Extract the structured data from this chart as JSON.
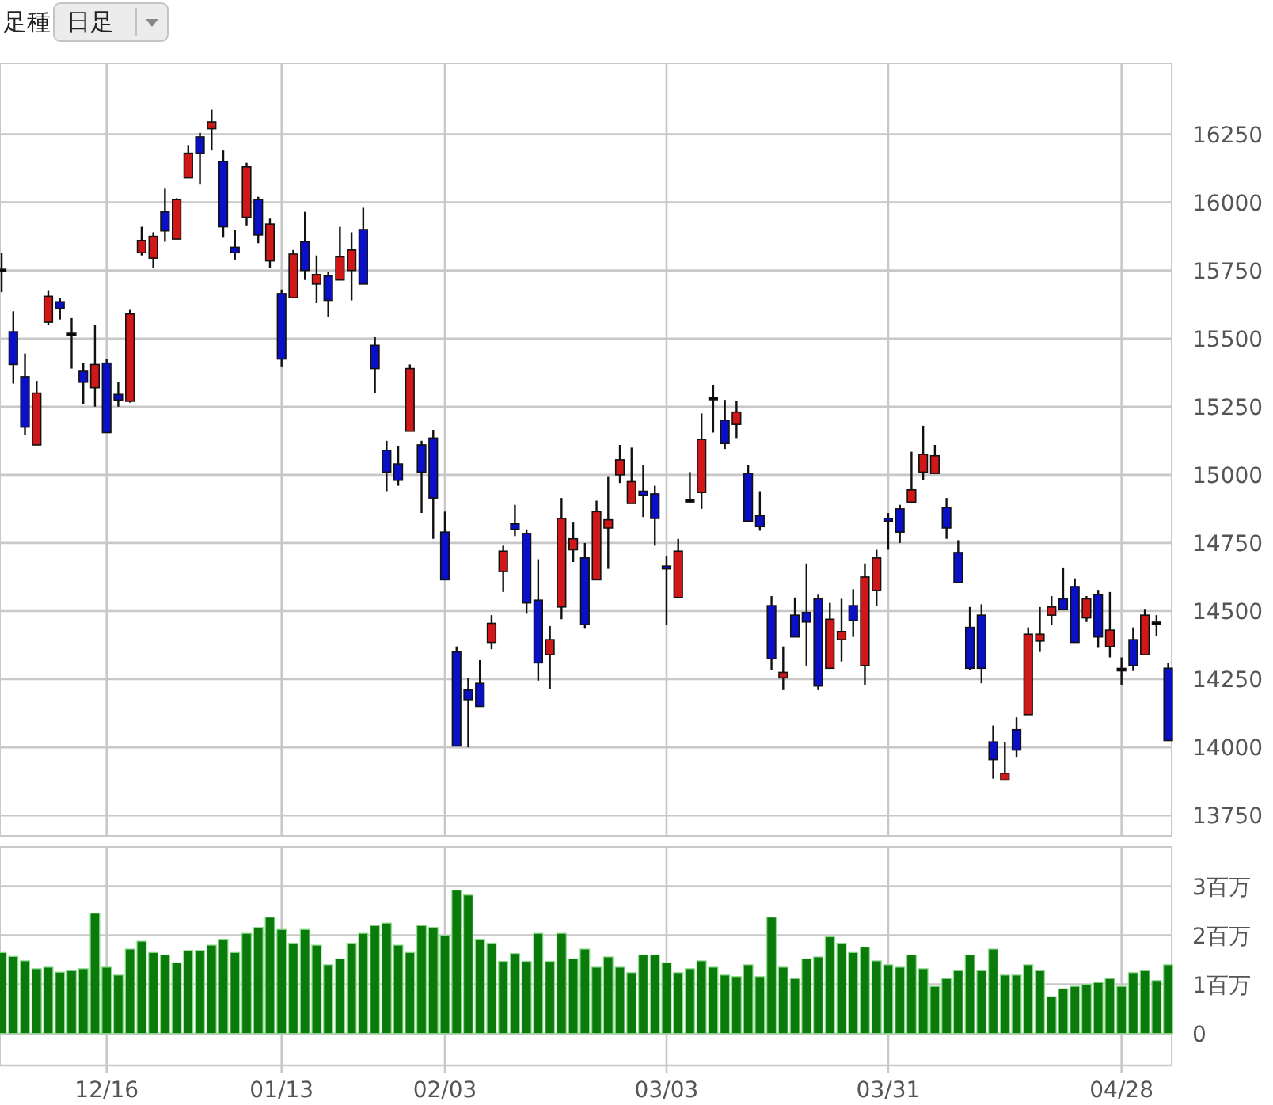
{
  "chart_data": [
    {
      "type": "candlestick",
      "annotations": [
        "足種",
        "日足"
      ],
      "categories": [
        null,
        null,
        null,
        null,
        null,
        null,
        null,
        null,
        null,
        null,
        null,
        null,
        null,
        null,
        null,
        null,
        null,
        null,
        null,
        null,
        null,
        null,
        null,
        null,
        null,
        null,
        null,
        null,
        null,
        null,
        null,
        null,
        null,
        null,
        null,
        null,
        null,
        null,
        null,
        null,
        null,
        null,
        null,
        null,
        null,
        null,
        null,
        null,
        null,
        null,
        null,
        null,
        null,
        null,
        null,
        null,
        null,
        null,
        null,
        null,
        null,
        null,
        null,
        null,
        null,
        null,
        null,
        null,
        null,
        null,
        null,
        null,
        null,
        null,
        null,
        null,
        null,
        null,
        null,
        null,
        null,
        null,
        null,
        null,
        null,
        null,
        null,
        null,
        null,
        null,
        null,
        null,
        null,
        null,
        null,
        null,
        null,
        null,
        null,
        null,
        null
      ],
      "ohlc": [
        [
          15750,
          15815,
          15670,
          15750
        ],
        [
          15525,
          15600,
          15335,
          15405
        ],
        [
          15360,
          15445,
          15145,
          15175
        ],
        [
          15110,
          15345,
          15110,
          15300
        ],
        [
          15560,
          15675,
          15550,
          15655
        ],
        [
          15635,
          15650,
          15570,
          15610
        ],
        [
          15515,
          15575,
          15390,
          15515
        ],
        [
          15380,
          15410,
          15260,
          15340
        ],
        [
          15320,
          15550,
          15250,
          15405
        ],
        [
          15410,
          15425,
          15155,
          15155
        ],
        [
          15295,
          15340,
          15250,
          15275
        ],
        [
          15270,
          15605,
          15265,
          15590
        ],
        [
          15815,
          15910,
          15805,
          15860
        ],
        [
          15795,
          15890,
          15760,
          15875
        ],
        [
          15965,
          16050,
          15855,
          15895
        ],
        [
          15865,
          16015,
          15865,
          16010
        ],
        [
          16090,
          16210,
          16090,
          16180
        ],
        [
          16240,
          16255,
          16065,
          16180
        ],
        [
          16270,
          16340,
          16190,
          16295
        ],
        [
          16150,
          16190,
          15870,
          15910
        ],
        [
          15835,
          15900,
          15790,
          15815
        ],
        [
          15945,
          16145,
          15915,
          16130
        ],
        [
          16010,
          16020,
          15850,
          15880
        ],
        [
          15785,
          15940,
          15760,
          15920
        ],
        [
          15665,
          15680,
          15395,
          15425
        ],
        [
          15650,
          15825,
          15650,
          15810
        ],
        [
          15855,
          15965,
          15715,
          15750
        ],
        [
          15700,
          15805,
          15630,
          15735
        ],
        [
          15730,
          15745,
          15580,
          15640
        ],
        [
          15715,
          15910,
          15715,
          15800
        ],
        [
          15750,
          15890,
          15640,
          15825
        ],
        [
          15900,
          15980,
          15700,
          15700
        ],
        [
          15475,
          15505,
          15300,
          15390
        ],
        [
          15090,
          15125,
          14940,
          15010
        ],
        [
          15040,
          15105,
          14960,
          14980
        ],
        [
          15160,
          15405,
          15160,
          15390
        ],
        [
          15110,
          15125,
          14860,
          15010
        ],
        [
          15135,
          15165,
          14765,
          14915
        ],
        [
          14790,
          14865,
          14615,
          14615
        ],
        [
          14350,
          14370,
          14005,
          14005
        ],
        [
          14210,
          14255,
          14000,
          14175
        ],
        [
          14235,
          14320,
          14150,
          14150
        ],
        [
          14385,
          14485,
          14360,
          14455
        ],
        [
          14645,
          14740,
          14570,
          14720
        ],
        [
          14820,
          14890,
          14775,
          14800
        ],
        [
          14785,
          14800,
          14490,
          14530
        ],
        [
          14540,
          14690,
          14245,
          14310
        ],
        [
          14340,
          14445,
          14215,
          14395
        ],
        [
          14515,
          14915,
          14470,
          14840
        ],
        [
          14725,
          14825,
          14680,
          14765
        ],
        [
          14695,
          14750,
          14435,
          14450
        ],
        [
          14615,
          14905,
          14615,
          14865
        ],
        [
          14805,
          14995,
          14655,
          14835
        ],
        [
          15000,
          15110,
          14970,
          15055
        ],
        [
          14895,
          15100,
          14895,
          14975
        ],
        [
          14940,
          15035,
          14845,
          14925
        ],
        [
          14930,
          14960,
          14740,
          14840
        ],
        [
          14665,
          14700,
          14450,
          14655
        ],
        [
          14550,
          14765,
          14550,
          14720
        ],
        [
          14905,
          15010,
          14895,
          14905
        ],
        [
          14935,
          15225,
          14875,
          15130
        ],
        [
          15280,
          15330,
          15155,
          15280
        ],
        [
          15200,
          15275,
          15095,
          15115
        ],
        [
          15185,
          15270,
          15135,
          15230
        ],
        [
          15005,
          15035,
          14830,
          14830
        ],
        [
          14850,
          14940,
          14795,
          14810
        ],
        [
          14520,
          14555,
          14285,
          14325
        ],
        [
          14255,
          14370,
          14210,
          14275
        ],
        [
          14485,
          14550,
          14405,
          14405
        ],
        [
          14495,
          14675,
          14300,
          14460
        ],
        [
          14545,
          14560,
          14210,
          14225
        ],
        [
          14290,
          14530,
          14290,
          14470
        ],
        [
          14395,
          14545,
          14315,
          14425
        ],
        [
          14520,
          14580,
          14405,
          14465
        ],
        [
          14300,
          14675,
          14230,
          14625
        ],
        [
          14575,
          14725,
          14520,
          14695
        ],
        [
          14840,
          14860,
          14725,
          14830
        ],
        [
          14875,
          14890,
          14750,
          14790
        ],
        [
          14900,
          15085,
          14900,
          14945
        ],
        [
          15010,
          15180,
          14980,
          15075
        ],
        [
          15005,
          15110,
          15005,
          15070
        ],
        [
          14880,
          14915,
          14765,
          14805
        ],
        [
          14715,
          14760,
          14605,
          14605
        ],
        [
          14440,
          14515,
          14285,
          14290
        ],
        [
          14485,
          14525,
          14235,
          14290
        ],
        [
          14020,
          14080,
          13885,
          13955
        ],
        [
          13880,
          14020,
          13880,
          13905
        ],
        [
          14065,
          14110,
          13965,
          13990
        ],
        [
          14120,
          14440,
          14120,
          14415
        ],
        [
          14390,
          14515,
          14350,
          14415
        ],
        [
          14485,
          14555,
          14450,
          14515
        ],
        [
          14545,
          14660,
          14505,
          14505
        ],
        [
          14590,
          14620,
          14385,
          14385
        ],
        [
          14475,
          14555,
          14460,
          14545
        ],
        [
          14560,
          14575,
          14365,
          14405
        ],
        [
          14370,
          14570,
          14330,
          14430
        ],
        [
          14285,
          14330,
          14230,
          14285
        ],
        [
          14395,
          14440,
          14280,
          14300
        ],
        [
          14340,
          14505,
          14340,
          14485
        ],
        [
          14455,
          14485,
          14410,
          14455
        ],
        [
          14290,
          14310,
          14025,
          14025
        ]
      ],
      "colors": [
        "#000000",
        "#0a10c8",
        "#0a10c8",
        "#d01818",
        "#d01818",
        "#0a10c8",
        "#000000",
        "#0a10c8",
        "#d01818",
        "#0a10c8",
        "#0a10c8",
        "#d01818",
        "#d01818",
        "#d01818",
        "#0a10c8",
        "#d01818",
        "#d01818",
        "#0a10c8",
        "#d01818",
        "#0a10c8",
        "#0a10c8",
        "#d01818",
        "#0a10c8",
        "#d01818",
        "#0a10c8",
        "#d01818",
        "#0a10c8",
        "#d01818",
        "#0a10c8",
        "#d01818",
        "#d01818",
        "#0a10c8",
        "#0a10c8",
        "#0a10c8",
        "#0a10c8",
        "#d01818",
        "#0a10c8",
        "#0a10c8",
        "#0a10c8",
        "#0a10c8",
        "#0a10c8",
        "#0a10c8",
        "#d01818",
        "#d01818",
        "#0a10c8",
        "#0a10c8",
        "#0a10c8",
        "#d01818",
        "#d01818",
        "#d01818",
        "#0a10c8",
        "#d01818",
        "#d01818",
        "#d01818",
        "#d01818",
        "#0a10c8",
        "#0a10c8",
        "#0a10c8",
        "#d01818",
        "#000000",
        "#d01818",
        "#000000",
        "#0a10c8",
        "#d01818",
        "#0a10c8",
        "#0a10c8",
        "#0a10c8",
        "#d01818",
        "#0a10c8",
        "#0a10c8",
        "#0a10c8",
        "#d01818",
        "#d01818",
        "#0a10c8",
        "#d01818",
        "#d01818",
        "#0a10c8",
        "#0a10c8",
        "#d01818",
        "#d01818",
        "#d01818",
        "#0a10c8",
        "#0a10c8",
        "#0a10c8",
        "#0a10c8",
        "#0a10c8",
        "#d01818",
        "#0a10c8",
        "#d01818",
        "#d01818",
        "#d01818",
        "#0a10c8",
        "#0a10c8",
        "#d01818",
        "#0a10c8",
        "#d01818",
        "#000000",
        "#0a10c8",
        "#d01818",
        "#000000",
        "#0a10c8"
      ],
      "ylim": [
        13675,
        16510
      ],
      "yticks": [
        13750,
        14000,
        14250,
        14500,
        14750,
        15000,
        15250,
        15500,
        15750,
        16000,
        16250
      ],
      "grid": true,
      "tick_labels": "y"
    },
    {
      "type": "bar",
      "categories": [
        null,
        null,
        null,
        null,
        null,
        null,
        null,
        null,
        null,
        "12/16",
        null,
        null,
        null,
        null,
        null,
        null,
        null,
        null,
        null,
        null,
        null,
        null,
        null,
        null,
        "01/13",
        null,
        null,
        null,
        null,
        null,
        null,
        null,
        null,
        null,
        null,
        null,
        null,
        null,
        "02/03",
        null,
        null,
        null,
        null,
        null,
        null,
        null,
        null,
        null,
        null,
        null,
        null,
        null,
        null,
        null,
        null,
        null,
        null,
        "03/03",
        null,
        null,
        null,
        null,
        null,
        null,
        null,
        null,
        null,
        null,
        null,
        null,
        null,
        null,
        null,
        null,
        null,
        null,
        "03/31",
        null,
        null,
        null,
        null,
        null,
        null,
        null,
        null,
        null,
        null,
        null,
        null,
        null,
        null,
        null,
        null,
        null,
        null,
        null,
        "04/28",
        null,
        null,
        null,
        null
      ],
      "values": [
        1.65,
        1.57,
        1.48,
        1.32,
        1.35,
        1.25,
        1.28,
        1.32,
        2.45,
        1.35,
        1.19,
        1.72,
        1.88,
        1.65,
        1.6,
        1.44,
        1.69,
        1.69,
        1.8,
        1.92,
        1.65,
        2.04,
        2.16,
        2.37,
        2.12,
        1.84,
        2.12,
        1.8,
        1.4,
        1.52,
        1.84,
        2.04,
        2.2,
        2.25,
        1.8,
        1.65,
        2.2,
        2.16,
        2.0,
        2.92,
        2.82,
        1.92,
        1.84,
        1.47,
        1.63,
        1.47,
        2.04,
        1.47,
        2.04,
        1.52,
        1.72,
        1.35,
        1.56,
        1.35,
        1.24,
        1.6,
        1.6,
        1.44,
        1.24,
        1.32,
        1.48,
        1.35,
        1.19,
        1.16,
        1.4,
        1.16,
        2.37,
        1.35,
        1.12,
        1.52,
        1.56,
        1.97,
        1.84,
        1.65,
        1.76,
        1.48,
        1.4,
        1.35,
        1.6,
        1.32,
        0.96,
        1.12,
        1.28,
        1.6,
        1.28,
        1.72,
        1.19,
        1.19,
        1.4,
        1.28,
        0.75,
        0.91,
        0.96,
        1.0,
        1.04,
        1.12,
        0.96,
        1.24,
        1.28,
        1.08,
        1.4
      ],
      "color": "#0a7a0a",
      "ylim": [
        -0.65,
        3.8
      ],
      "yticks": [
        0,
        {
          "value": 1,
          "label": "1百万"
        },
        {
          "value": 2,
          "label": "2百万"
        },
        {
          "value": 3,
          "label": "3百万"
        }
      ],
      "grid": true
    }
  ]
}
